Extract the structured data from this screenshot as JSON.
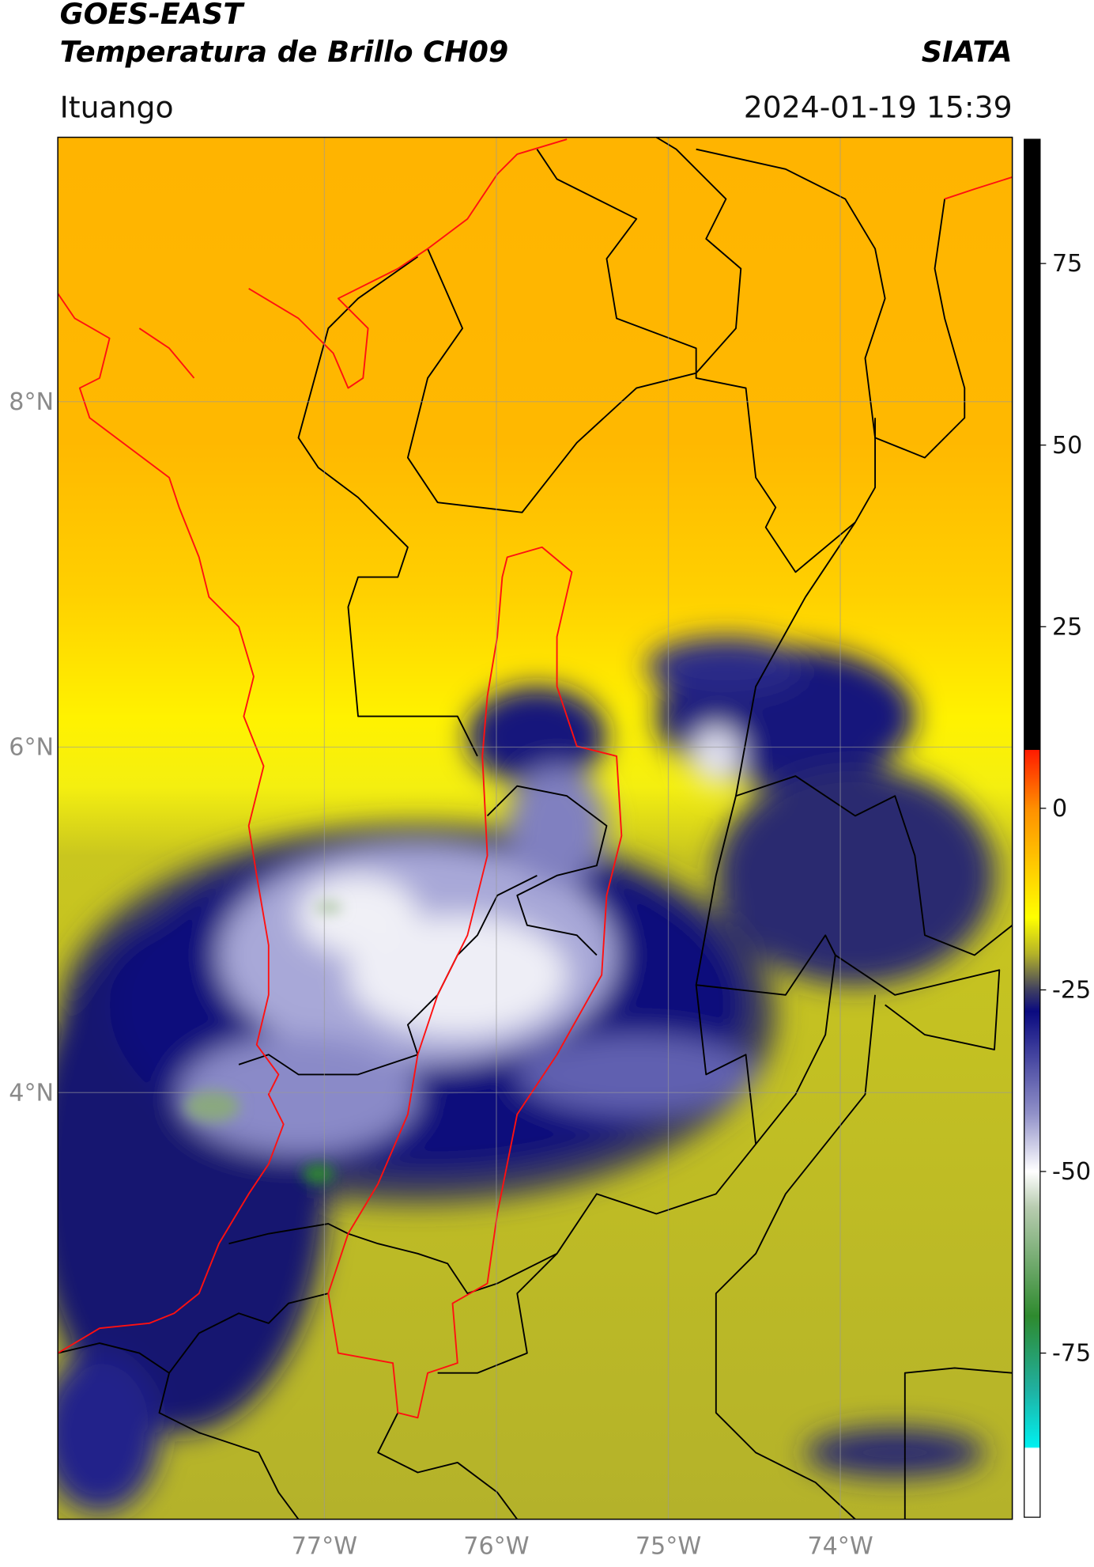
{
  "header": {
    "title": "GOES-EAST",
    "subtitle": "Temperatura de Brillo CH09",
    "source": "SIATA",
    "location": "Ituango",
    "datetime": "2024-01-19 15:39"
  },
  "map": {
    "xlim": [
      -78.55,
      -73.0
    ],
    "xticks": [
      {
        "value": -77,
        "label": "77°W"
      },
      {
        "value": -76,
        "label": "76°W"
      },
      {
        "value": -75,
        "label": "75°W"
      },
      {
        "value": -74,
        "label": "74°W"
      }
    ],
    "ylim": [
      1.53,
      9.53
    ],
    "yticks": [
      {
        "value": 8,
        "label": "8°N"
      },
      {
        "value": 6,
        "label": "6°N"
      },
      {
        "value": 4,
        "label": "4°N"
      }
    ],
    "grid": true
  },
  "colorbar": {
    "lim": [
      -97.6,
      92.1
    ],
    "ticks": [
      75,
      50,
      25,
      0,
      -25,
      -50,
      -75
    ]
  }
}
